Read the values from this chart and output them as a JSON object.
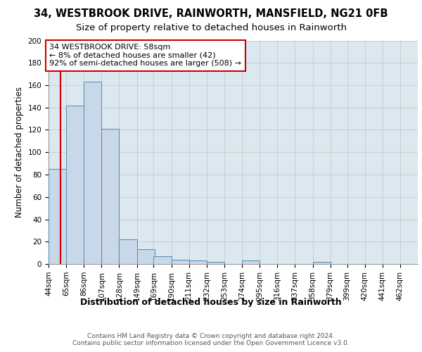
{
  "title1": "34, WESTBROOK DRIVE, RAINWORTH, MANSFIELD, NG21 0FB",
  "title2": "Size of property relative to detached houses in Rainworth",
  "xlabel": "Distribution of detached houses by size in Rainworth",
  "ylabel": "Number of detached properties",
  "bin_edges": [
    44,
    65,
    86,
    107,
    128,
    149,
    169,
    190,
    211,
    232,
    253,
    274,
    295,
    316,
    337,
    358,
    379,
    399,
    420,
    441,
    462
  ],
  "bin_labels": [
    "44sqm",
    "65sqm",
    "86sqm",
    "107sqm",
    "128sqm",
    "149sqm",
    "169sqm",
    "190sqm",
    "211sqm",
    "232sqm",
    "253sqm",
    "274sqm",
    "295sqm",
    "316sqm",
    "337sqm",
    "358sqm",
    "379sqm",
    "399sqm",
    "420sqm",
    "441sqm",
    "462sqm"
  ],
  "bar_heights": [
    85,
    142,
    163,
    121,
    22,
    13,
    7,
    4,
    3,
    2,
    0,
    3,
    0,
    0,
    0,
    2,
    0,
    0,
    0,
    0
  ],
  "bar_color": "#c8d8e8",
  "bar_edge_color": "#5588aa",
  "property_size": 58,
  "red_line_color": "#cc0000",
  "annotation_text": "34 WESTBROOK DRIVE: 58sqm\n← 8% of detached houses are smaller (42)\n92% of semi-detached houses are larger (508) →",
  "annotation_box_facecolor": "#ffffff",
  "annotation_box_edgecolor": "#cc0000",
  "ylim": [
    0,
    200
  ],
  "yticks": [
    0,
    20,
    40,
    60,
    80,
    100,
    120,
    140,
    160,
    180,
    200
  ],
  "grid_color": "#cccccc",
  "plot_bg_color": "#dce8f0",
  "fig_bg_color": "#ffffff",
  "footnote": "Contains HM Land Registry data © Crown copyright and database right 2024.\nContains public sector information licensed under the Open Government Licence v3.0.",
  "title1_fontsize": 10.5,
  "title2_fontsize": 9.5,
  "xlabel_fontsize": 9,
  "ylabel_fontsize": 8.5,
  "tick_fontsize": 7.5,
  "annotation_fontsize": 8,
  "footnote_fontsize": 6.5
}
